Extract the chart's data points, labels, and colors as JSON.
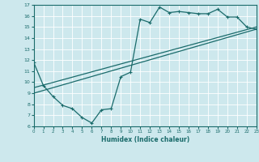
{
  "xlabel": "Humidex (Indice chaleur)",
  "xlim": [
    0,
    23
  ],
  "ylim": [
    6,
    17
  ],
  "xticks": [
    0,
    1,
    2,
    3,
    4,
    5,
    6,
    7,
    8,
    9,
    10,
    11,
    12,
    13,
    14,
    15,
    16,
    17,
    18,
    19,
    20,
    21,
    22,
    23
  ],
  "yticks": [
    6,
    7,
    8,
    9,
    10,
    11,
    12,
    13,
    14,
    15,
    16,
    17
  ],
  "bg_color": "#cde8ed",
  "line_color": "#1a6b6b",
  "grid_color": "#ffffff",
  "line1_x": [
    0,
    1,
    2,
    3,
    4,
    5,
    6,
    7,
    8,
    9,
    10,
    11,
    12,
    13,
    14,
    15,
    16,
    17,
    18,
    19,
    20,
    21,
    22,
    23
  ],
  "line1_y": [
    11.8,
    9.7,
    8.7,
    7.9,
    7.6,
    6.8,
    6.3,
    7.5,
    7.6,
    10.5,
    10.9,
    15.7,
    15.4,
    16.8,
    16.3,
    16.4,
    16.3,
    16.2,
    16.2,
    16.6,
    15.9,
    15.9,
    15.0,
    14.8
  ],
  "line2_x": [
    0,
    23
  ],
  "line2_y": [
    9.5,
    15.0
  ],
  "line3_x": [
    0,
    23
  ],
  "line3_y": [
    9.0,
    14.8
  ]
}
